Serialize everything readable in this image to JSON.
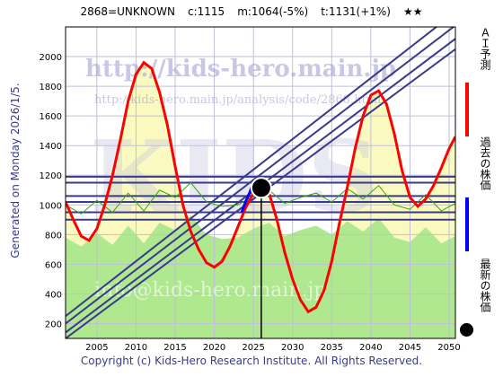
{
  "header": {
    "code_name": "2868=UNKNOWN",
    "current": "c:1115",
    "middle": "m:1064(-5%)",
    "target": "t:1131(+1%)",
    "rating": "★★"
  },
  "side_text": "Generated on Monday 2026/1/5.",
  "footer": "Copyright (c) Kids-Hero Research Institute. All Rights Reserved.",
  "watermarks": {
    "main": "http://kids-hero.main.jp",
    "sub": "http://kids-hero.main.jp/analysis/code/2868.html",
    "big": "KIDS",
    "email": "info@kids-hero.main.jp"
  },
  "legend": [
    {
      "label": "ＡＩ予測",
      "color": "#ff0000"
    },
    {
      "label": "過去の株価",
      "color": "#0000ff"
    },
    {
      "label": "最新の株価",
      "color": "#000000"
    }
  ],
  "colors": {
    "prediction": "#ff0000",
    "past": "#0000ff",
    "green_line": "#33aa00",
    "green_fill": "#b0e890",
    "yellow_fill": "#fafac0",
    "trend_lines": "#3a3a8a",
    "grid": "#bfbfd8"
  },
  "chart_data": {
    "type": "line",
    "xlim": [
      2001,
      2050.8
    ],
    "ylim": [
      100,
      2200
    ],
    "x_ticks": [
      2005,
      2010,
      2015,
      2020,
      2025,
      2030,
      2035,
      2040,
      2045,
      2050
    ],
    "y_ticks": [
      200,
      400,
      600,
      800,
      1000,
      1200,
      1400,
      1600,
      1800,
      2000
    ],
    "grid": true,
    "latest": {
      "x": 2026.0,
      "y": 1115
    },
    "series": [
      {
        "points": [
          [
            2001,
            1020
          ],
          [
            2002,
            900
          ],
          [
            2003,
            790
          ],
          [
            2004,
            760
          ],
          [
            2005,
            840
          ],
          [
            2006,
            1000
          ],
          [
            2007,
            1200
          ],
          [
            2008,
            1440
          ],
          [
            2009,
            1700
          ],
          [
            2010,
            1880
          ],
          [
            2011,
            1960
          ],
          [
            2012,
            1920
          ],
          [
            2013,
            1760
          ],
          [
            2014,
            1540
          ],
          [
            2015,
            1260
          ],
          [
            2016,
            1000
          ],
          [
            2017,
            820
          ],
          [
            2018,
            700
          ],
          [
            2019,
            610
          ],
          [
            2020,
            580
          ],
          [
            2021,
            620
          ],
          [
            2022,
            720
          ],
          [
            2023,
            850
          ],
          [
            2024,
            980
          ],
          [
            2025,
            1080
          ],
          [
            2026,
            1115
          ],
          [
            2027,
            1080
          ],
          [
            2028,
            900
          ],
          [
            2029,
            680
          ],
          [
            2030,
            500
          ],
          [
            2031,
            360
          ],
          [
            2032,
            280
          ],
          [
            2033,
            310
          ],
          [
            2034,
            420
          ],
          [
            2035,
            620
          ],
          [
            2036,
            880
          ],
          [
            2037,
            1120
          ],
          [
            2038,
            1380
          ],
          [
            2039,
            1600
          ],
          [
            2040,
            1740
          ],
          [
            2041,
            1770
          ],
          [
            2042,
            1680
          ],
          [
            2043,
            1480
          ],
          [
            2044,
            1230
          ],
          [
            2045,
            1050
          ],
          [
            2046,
            990
          ],
          [
            2047,
            1040
          ],
          [
            2048,
            1130
          ],
          [
            2049,
            1250
          ],
          [
            2050,
            1380
          ],
          [
            2050.8,
            1460
          ]
        ]
      },
      {
        "points": [
          [
            2023.5,
            950
          ],
          [
            2024,
            1020
          ],
          [
            2024.5,
            1080
          ],
          [
            2025,
            1150
          ],
          [
            2025.5,
            1100
          ],
          [
            2026,
            1115
          ]
        ]
      },
      {
        "points": [
          [
            2001,
            1000
          ],
          [
            2003,
            940
          ],
          [
            2005,
            1030
          ],
          [
            2007,
            950
          ],
          [
            2009,
            1080
          ],
          [
            2011,
            960
          ],
          [
            2013,
            1100
          ],
          [
            2015,
            1050
          ],
          [
            2017,
            1150
          ],
          [
            2019,
            1020
          ],
          [
            2021,
            990
          ],
          [
            2023,
            1000
          ],
          [
            2025,
            1060
          ],
          [
            2027,
            1100
          ],
          [
            2029,
            1010
          ],
          [
            2031,
            1050
          ],
          [
            2033,
            1080
          ],
          [
            2035,
            1020
          ],
          [
            2037,
            1110
          ],
          [
            2039,
            1040
          ],
          [
            2041,
            1130
          ],
          [
            2043,
            1000
          ],
          [
            2045,
            970
          ],
          [
            2047,
            1070
          ],
          [
            2049,
            960
          ],
          [
            2050.8,
            1010
          ]
        ]
      }
    ],
    "trend_lines": [
      {
        "start": [
          2001,
          250
        ],
        "end": [
          2050.8,
          2300
        ]
      },
      {
        "start": [
          2001,
          200
        ],
        "end": [
          2050.8,
          2210
        ]
      },
      {
        "start": [
          2001,
          140
        ],
        "end": [
          2050.8,
          2120
        ]
      },
      {
        "start": [
          2001,
          100
        ],
        "end": [
          2050.8,
          2050
        ]
      }
    ],
    "horizontal_lines": [
      1190,
      1150,
      1060,
      1020,
      950,
      900
    ]
  }
}
